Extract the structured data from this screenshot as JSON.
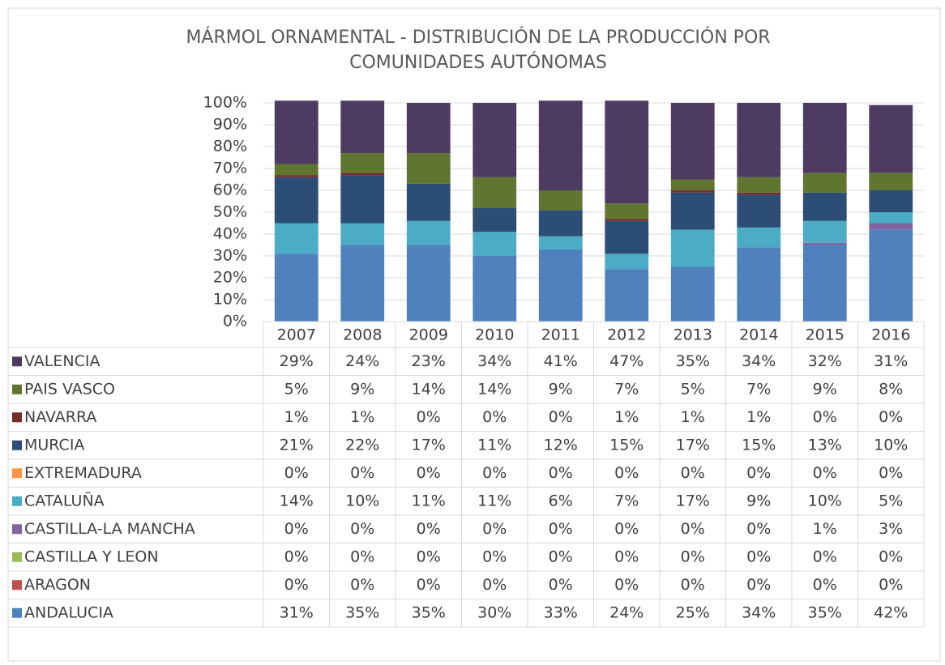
{
  "chart_data": {
    "type": "bar",
    "stacked": true,
    "title": "MÁRMOL ORNAMENTAL - DISTRIBUCIÓN DE LA PRODUCCIÓN POR COMUNIDADES AUTÓNOMAS",
    "categories": [
      "2007",
      "2008",
      "2009",
      "2010",
      "2011",
      "2012",
      "2013",
      "2014",
      "2015",
      "2016"
    ],
    "ylim": [
      0,
      100
    ],
    "yticks": [
      {
        "value": 0,
        "label": "0%"
      },
      {
        "value": 10,
        "label": "10%"
      },
      {
        "value": 20,
        "label": "20%"
      },
      {
        "value": 30,
        "label": "30%"
      },
      {
        "value": 40,
        "label": "40%"
      },
      {
        "value": 50,
        "label": "50%"
      },
      {
        "value": 60,
        "label": "60%"
      },
      {
        "value": 70,
        "label": "70%"
      },
      {
        "value": 80,
        "label": "80%"
      },
      {
        "value": 90,
        "label": "90%"
      },
      {
        "value": 100,
        "label": "100%"
      }
    ],
    "grid": true,
    "series": [
      {
        "name": "ANDALUCIA",
        "color": "#4f81bd",
        "values": [
          31,
          35,
          35,
          30,
          33,
          24,
          25,
          34,
          35,
          42
        ],
        "value_labels": [
          "31%",
          "35%",
          "35%",
          "30%",
          "33%",
          "24%",
          "25%",
          "34%",
          "35%",
          "42%"
        ]
      },
      {
        "name": "ARAGON",
        "color": "#c0504d",
        "values": [
          0,
          0,
          0,
          0,
          0,
          0,
          0,
          0,
          0,
          0
        ],
        "value_labels": [
          "0%",
          "0%",
          "0%",
          "0%",
          "0%",
          "0%",
          "0%",
          "0%",
          "0%",
          "0%"
        ]
      },
      {
        "name": "CASTILLA Y LEON",
        "color": "#9bbb59",
        "values": [
          0,
          0,
          0,
          0,
          0,
          0,
          0,
          0,
          0,
          0
        ],
        "value_labels": [
          "0%",
          "0%",
          "0%",
          "0%",
          "0%",
          "0%",
          "0%",
          "0%",
          "0%",
          "0%"
        ]
      },
      {
        "name": "CASTILLA-LA MANCHA",
        "color": "#8064a2",
        "values": [
          0,
          0,
          0,
          0,
          0,
          0,
          0,
          0,
          1,
          3
        ],
        "value_labels": [
          "0%",
          "0%",
          "0%",
          "0%",
          "0%",
          "0%",
          "0%",
          "0%",
          "1%",
          "3%"
        ]
      },
      {
        "name": "CATALUÑA",
        "color": "#4bacc6",
        "values": [
          14,
          10,
          11,
          11,
          6,
          7,
          17,
          9,
          10,
          5
        ],
        "value_labels": [
          "14%",
          "10%",
          "11%",
          "11%",
          "6%",
          "7%",
          "17%",
          "9%",
          "10%",
          "5%"
        ]
      },
      {
        "name": "EXTREMADURA",
        "color": "#f79646",
        "values": [
          0,
          0,
          0,
          0,
          0,
          0,
          0,
          0,
          0,
          0
        ],
        "value_labels": [
          "0%",
          "0%",
          "0%",
          "0%",
          "0%",
          "0%",
          "0%",
          "0%",
          "0%",
          "0%"
        ]
      },
      {
        "name": "MURCIA",
        "color": "#2c4d75",
        "values": [
          21,
          22,
          17,
          11,
          12,
          15,
          17,
          15,
          13,
          10
        ],
        "value_labels": [
          "21%",
          "22%",
          "17%",
          "11%",
          "12%",
          "15%",
          "17%",
          "15%",
          "13%",
          "10%"
        ]
      },
      {
        "name": "NAVARRA",
        "color": "#772c2a",
        "values": [
          1,
          1,
          0,
          0,
          0,
          1,
          1,
          1,
          0,
          0
        ],
        "value_labels": [
          "1%",
          "1%",
          "0%",
          "0%",
          "0%",
          "1%",
          "1%",
          "1%",
          "0%",
          "0%"
        ]
      },
      {
        "name": "PAIS VASCO",
        "color": "#5f7530",
        "values": [
          5,
          9,
          14,
          14,
          9,
          7,
          5,
          7,
          9,
          8
        ],
        "value_labels": [
          "5%",
          "9%",
          "14%",
          "14%",
          "9%",
          "7%",
          "5%",
          "7%",
          "9%",
          "8%"
        ]
      },
      {
        "name": "VALENCIA",
        "color": "#4d3b62",
        "values": [
          29,
          24,
          23,
          34,
          41,
          47,
          35,
          34,
          32,
          31
        ],
        "value_labels": [
          "29%",
          "24%",
          "23%",
          "34%",
          "41%",
          "47%",
          "35%",
          "34%",
          "32%",
          "31%"
        ]
      }
    ]
  }
}
